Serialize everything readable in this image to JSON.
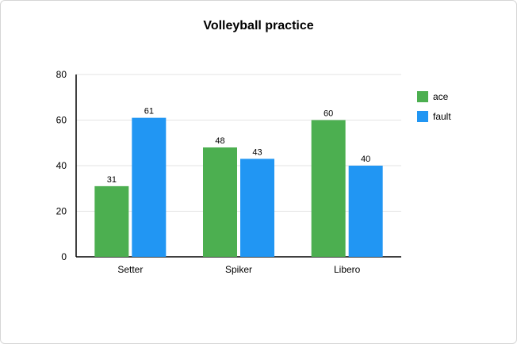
{
  "chart_data": {
    "type": "bar",
    "title": "Volleyball practice",
    "xlabel": "",
    "ylabel": "",
    "categories": [
      "Setter",
      "Spiker",
      "Libero"
    ],
    "series": [
      {
        "name": "ace",
        "values": [
          31,
          48,
          60
        ],
        "color": "#4caf50"
      },
      {
        "name": "fault",
        "values": [
          61,
          43,
          40
        ],
        "color": "#2196f3"
      }
    ],
    "ylim": [
      0,
      80
    ],
    "yticks": [
      0,
      20,
      40,
      60,
      80
    ],
    "grid": true,
    "legend_position": "right",
    "data_labels": true
  }
}
